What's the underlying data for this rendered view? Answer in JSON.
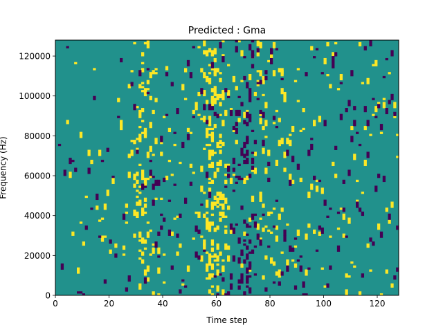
{
  "chart_data": {
    "type": "heatmap",
    "title": "Predicted : Gma",
    "xlabel": "Time step",
    "ylabel": "Frequency (Hz)",
    "xlim": [
      0,
      128
    ],
    "ylim": [
      0,
      128000
    ],
    "xticks": [
      0,
      20,
      40,
      60,
      80,
      100,
      120
    ],
    "xtick_labels": [
      "0",
      "20",
      "40",
      "60",
      "80",
      "100",
      "120"
    ],
    "yticks": [
      0,
      20000,
      40000,
      60000,
      80000,
      100000,
      120000
    ],
    "ytick_labels": [
      "0",
      "20000",
      "40000",
      "60000",
      "80000",
      "100000",
      "120000"
    ],
    "value_levels": [
      -1,
      0,
      1
    ],
    "colormap": "viridis",
    "colors": {
      "low": "#440154",
      "mid": "#21918c",
      "high": "#fde725"
    },
    "background_value": 0,
    "rows": 128,
    "cols": 128,
    "column_activity_high": [
      [
        0,
        0
      ],
      [
        1,
        0
      ],
      [
        2,
        0
      ],
      [
        3,
        0
      ],
      [
        4,
        1
      ],
      [
        5,
        1
      ],
      [
        6,
        1
      ],
      [
        7,
        1
      ],
      [
        8,
        1
      ],
      [
        9,
        2
      ],
      [
        10,
        1
      ],
      [
        11,
        1
      ],
      [
        12,
        1
      ],
      [
        13,
        1
      ],
      [
        14,
        1
      ],
      [
        15,
        1
      ],
      [
        16,
        2
      ],
      [
        17,
        2
      ],
      [
        18,
        2
      ],
      [
        19,
        1
      ],
      [
        20,
        1
      ],
      [
        21,
        1
      ],
      [
        22,
        1
      ],
      [
        23,
        1
      ],
      [
        24,
        2
      ],
      [
        25,
        2
      ],
      [
        26,
        3
      ],
      [
        27,
        3
      ],
      [
        28,
        4
      ],
      [
        29,
        6
      ],
      [
        30,
        10
      ],
      [
        31,
        16
      ],
      [
        32,
        18
      ],
      [
        33,
        14
      ],
      [
        34,
        10
      ],
      [
        35,
        7
      ],
      [
        36,
        6
      ],
      [
        37,
        5
      ],
      [
        38,
        4
      ],
      [
        39,
        3
      ],
      [
        40,
        3
      ],
      [
        41,
        2
      ],
      [
        42,
        2
      ],
      [
        43,
        2
      ],
      [
        44,
        2
      ],
      [
        45,
        2
      ],
      [
        46,
        2
      ],
      [
        47,
        2
      ],
      [
        48,
        2
      ],
      [
        49,
        2
      ],
      [
        50,
        2
      ],
      [
        51,
        3
      ],
      [
        52,
        3
      ],
      [
        53,
        4
      ],
      [
        54,
        6
      ],
      [
        55,
        10
      ],
      [
        56,
        18
      ],
      [
        57,
        24
      ],
      [
        58,
        26
      ],
      [
        59,
        20
      ],
      [
        60,
        16
      ],
      [
        61,
        18
      ],
      [
        62,
        16
      ],
      [
        63,
        10
      ],
      [
        64,
        6
      ],
      [
        65,
        4
      ],
      [
        66,
        3
      ],
      [
        67,
        3
      ],
      [
        68,
        3
      ],
      [
        69,
        3
      ],
      [
        70,
        3
      ],
      [
        71,
        3
      ],
      [
        72,
        3
      ],
      [
        73,
        3
      ],
      [
        74,
        4
      ],
      [
        75,
        6
      ],
      [
        76,
        8
      ],
      [
        77,
        8
      ],
      [
        78,
        6
      ],
      [
        79,
        4
      ],
      [
        80,
        4
      ],
      [
        81,
        5
      ],
      [
        82,
        6
      ],
      [
        83,
        7
      ],
      [
        84,
        6
      ],
      [
        85,
        4
      ],
      [
        86,
        3
      ],
      [
        87,
        3
      ],
      [
        88,
        3
      ],
      [
        89,
        3
      ],
      [
        90,
        3
      ],
      [
        91,
        2
      ],
      [
        92,
        2
      ],
      [
        93,
        2
      ],
      [
        94,
        2
      ],
      [
        95,
        2
      ],
      [
        96,
        2
      ],
      [
        97,
        2
      ],
      [
        98,
        2
      ],
      [
        99,
        2
      ],
      [
        100,
        2
      ],
      [
        101,
        2
      ],
      [
        102,
        2
      ],
      [
        103,
        2
      ],
      [
        104,
        2
      ],
      [
        105,
        2
      ],
      [
        106,
        2
      ],
      [
        107,
        2
      ],
      [
        108,
        2
      ],
      [
        109,
        2
      ],
      [
        110,
        2
      ],
      [
        111,
        2
      ],
      [
        112,
        2
      ],
      [
        113,
        2
      ],
      [
        114,
        2
      ],
      [
        115,
        2
      ],
      [
        116,
        2
      ],
      [
        117,
        2
      ],
      [
        118,
        2
      ],
      [
        119,
        2
      ],
      [
        120,
        2
      ],
      [
        121,
        2
      ],
      [
        122,
        2
      ],
      [
        123,
        2
      ],
      [
        124,
        2
      ],
      [
        125,
        2
      ],
      [
        126,
        2
      ],
      [
        127,
        2
      ]
    ],
    "column_activity_low": [
      [
        0,
        0
      ],
      [
        1,
        1
      ],
      [
        2,
        1
      ],
      [
        3,
        1
      ],
      [
        4,
        1
      ],
      [
        5,
        1
      ],
      [
        6,
        1
      ],
      [
        7,
        1
      ],
      [
        8,
        1
      ],
      [
        9,
        1
      ],
      [
        10,
        1
      ],
      [
        11,
        1
      ],
      [
        12,
        1
      ],
      [
        13,
        1
      ],
      [
        14,
        1
      ],
      [
        15,
        1
      ],
      [
        16,
        1
      ],
      [
        17,
        1
      ],
      [
        18,
        1
      ],
      [
        19,
        1
      ],
      [
        20,
        1
      ],
      [
        21,
        1
      ],
      [
        22,
        1
      ],
      [
        23,
        1
      ],
      [
        24,
        1
      ],
      [
        25,
        1
      ],
      [
        26,
        1
      ],
      [
        27,
        1
      ],
      [
        28,
        1
      ],
      [
        29,
        1
      ],
      [
        30,
        1
      ],
      [
        31,
        1
      ],
      [
        32,
        1
      ],
      [
        33,
        2
      ],
      [
        34,
        2
      ],
      [
        35,
        2
      ],
      [
        36,
        3
      ],
      [
        37,
        3
      ],
      [
        38,
        3
      ],
      [
        39,
        3
      ],
      [
        40,
        2
      ],
      [
        41,
        2
      ],
      [
        42,
        2
      ],
      [
        43,
        2
      ],
      [
        44,
        2
      ],
      [
        45,
        2
      ],
      [
        46,
        2
      ],
      [
        47,
        2
      ],
      [
        48,
        2
      ],
      [
        49,
        2
      ],
      [
        50,
        2
      ],
      [
        51,
        2
      ],
      [
        52,
        2
      ],
      [
        53,
        2
      ],
      [
        54,
        2
      ],
      [
        55,
        2
      ],
      [
        56,
        2
      ],
      [
        57,
        2
      ],
      [
        58,
        2
      ],
      [
        59,
        2
      ],
      [
        60,
        2
      ],
      [
        61,
        2
      ],
      [
        62,
        2
      ],
      [
        63,
        3
      ],
      [
        64,
        4
      ],
      [
        65,
        4
      ],
      [
        66,
        6
      ],
      [
        67,
        8
      ],
      [
        68,
        8
      ],
      [
        69,
        9
      ],
      [
        70,
        12
      ],
      [
        71,
        20
      ],
      [
        72,
        16
      ],
      [
        73,
        10
      ],
      [
        74,
        6
      ],
      [
        75,
        4
      ],
      [
        76,
        3
      ],
      [
        77,
        3
      ],
      [
        78,
        3
      ],
      [
        79,
        3
      ],
      [
        80,
        3
      ],
      [
        81,
        3
      ],
      [
        82,
        3
      ],
      [
        83,
        2
      ],
      [
        84,
        2
      ],
      [
        85,
        2
      ],
      [
        86,
        2
      ],
      [
        87,
        2
      ],
      [
        88,
        2
      ],
      [
        89,
        2
      ],
      [
        90,
        2
      ],
      [
        91,
        2
      ],
      [
        92,
        2
      ],
      [
        93,
        2
      ],
      [
        94,
        2
      ],
      [
        95,
        2
      ],
      [
        96,
        2
      ],
      [
        97,
        2
      ],
      [
        98,
        2
      ],
      [
        99,
        2
      ],
      [
        100,
        2
      ],
      [
        101,
        2
      ],
      [
        102,
        2
      ],
      [
        103,
        2
      ],
      [
        104,
        2
      ],
      [
        105,
        2
      ],
      [
        106,
        2
      ],
      [
        107,
        2
      ],
      [
        108,
        2
      ],
      [
        109,
        2
      ],
      [
        110,
        2
      ],
      [
        111,
        2
      ],
      [
        112,
        2
      ],
      [
        113,
        2
      ],
      [
        114,
        2
      ],
      [
        115,
        2
      ],
      [
        116,
        2
      ],
      [
        117,
        2
      ],
      [
        118,
        2
      ],
      [
        119,
        2
      ],
      [
        120,
        2
      ],
      [
        121,
        2
      ],
      [
        122,
        2
      ],
      [
        123,
        2
      ],
      [
        124,
        2
      ],
      [
        125,
        2
      ],
      [
        126,
        2
      ],
      [
        127,
        2
      ]
    ]
  }
}
